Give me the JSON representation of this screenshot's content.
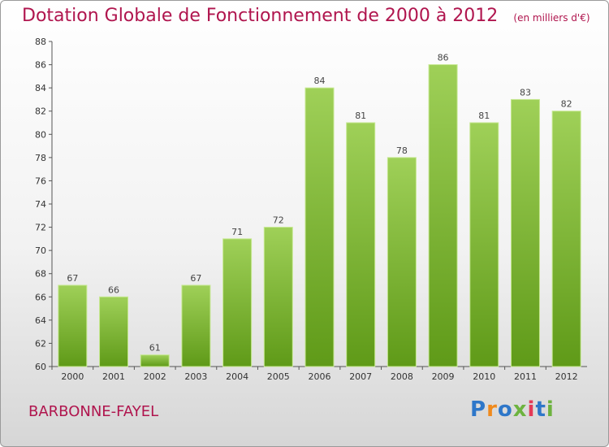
{
  "title": "Dotation Globale de Fonctionnement de 2000 à 2012",
  "unit_note": "(en milliers d'€)",
  "commune": "BARBONNE-FAYEL",
  "logo": {
    "letters": [
      "P",
      "r",
      "o",
      "x",
      "i",
      "t",
      "i"
    ],
    "colors": [
      "#2e77c9",
      "#f08a1c",
      "#2e77c9",
      "#6db33f",
      "#e43a57",
      "#2e77c9",
      "#6db33f"
    ]
  },
  "colors": {
    "bar_top": "#9fd058",
    "bar_bottom": "#5f9a18",
    "bar_edge": "#c6e891",
    "title": "#b0154e"
  },
  "chart_data": {
    "type": "bar",
    "title": "Dotation Globale de Fonctionnement de 2000 à 2012",
    "xlabel": "",
    "ylabel": "",
    "categories": [
      "2000",
      "2001",
      "2002",
      "2003",
      "2004",
      "2005",
      "2006",
      "2007",
      "2008",
      "2009",
      "2010",
      "2011",
      "2012"
    ],
    "values": [
      67,
      66,
      61,
      67,
      71,
      72,
      84,
      81,
      78,
      86,
      81,
      83,
      82
    ],
    "ylim": [
      60,
      88
    ],
    "yticks": [
      60,
      62,
      64,
      66,
      68,
      70,
      72,
      74,
      76,
      78,
      80,
      82,
      84,
      86,
      88
    ],
    "grid": false,
    "data_labels": true
  }
}
